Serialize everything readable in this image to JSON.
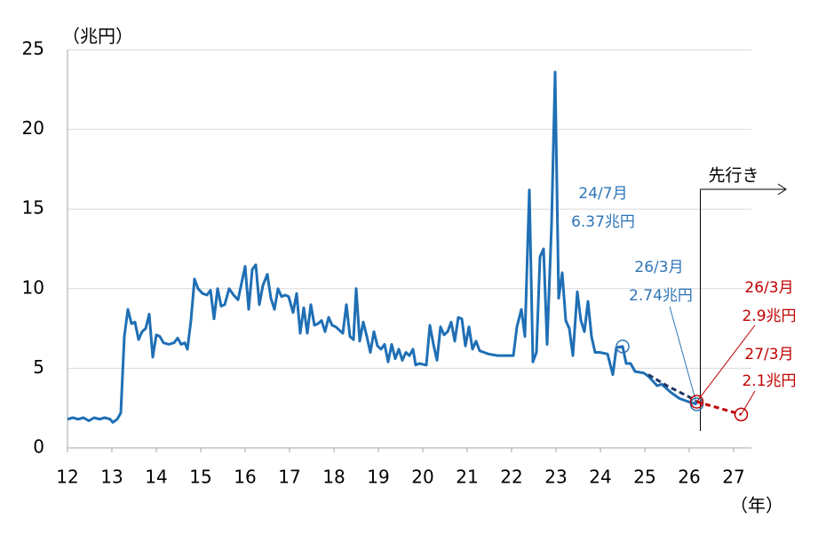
{
  "chart_data": {
    "type": "line",
    "x_label": "（年）",
    "y_label": "（兆円）",
    "xlim": [
      12,
      27.4
    ],
    "ylim": [
      0,
      25
    ],
    "xticks": [
      12,
      13,
      14,
      15,
      16,
      17,
      18,
      19,
      20,
      21,
      22,
      23,
      24,
      25,
      26,
      27
    ],
    "yticks": [
      0,
      5,
      10,
      15,
      20,
      25
    ],
    "grid": true,
    "series": [
      {
        "color": "#1f6fb5",
        "style": "solid",
        "x": [
          12.0,
          12.12,
          12.24,
          12.36,
          12.48,
          12.6,
          12.72,
          12.84,
          12.96,
          13.02,
          13.12,
          13.2,
          13.28,
          13.36,
          13.44,
          13.52,
          13.6,
          13.68,
          13.76,
          13.84,
          13.92,
          14.0,
          14.08,
          14.16,
          14.28,
          14.4,
          14.48,
          14.56,
          14.64,
          14.7,
          14.78,
          14.86,
          14.94,
          15.04,
          15.14,
          15.22,
          15.3,
          15.38,
          15.46,
          15.54,
          15.64,
          15.74,
          15.84,
          16.0,
          16.08,
          16.16,
          16.24,
          16.32,
          16.4,
          16.5,
          16.58,
          16.66,
          16.74,
          16.82,
          16.9,
          16.98,
          17.08,
          17.16,
          17.24,
          17.32,
          17.4,
          17.48,
          17.56,
          17.64,
          17.72,
          17.8,
          17.88,
          17.96,
          18.04,
          18.2,
          18.28,
          18.36,
          18.44,
          18.5,
          18.58,
          18.66,
          18.74,
          18.82,
          18.9,
          18.98,
          19.06,
          19.14,
          19.22,
          19.3,
          19.38,
          19.46,
          19.54,
          19.62,
          19.7,
          19.78,
          19.84,
          19.92,
          20.08,
          20.16,
          20.24,
          20.32,
          20.4,
          20.48,
          20.56,
          20.64,
          20.72,
          20.8,
          20.88,
          20.96,
          21.04,
          21.12,
          21.2,
          21.28,
          21.38,
          21.48,
          21.68,
          21.88,
          22.04,
          22.12,
          22.22,
          22.3,
          22.4,
          22.48,
          22.56,
          22.64,
          22.72,
          22.8,
          22.9,
          22.98,
          23.06,
          23.14,
          23.22,
          23.3,
          23.38,
          23.48,
          23.56,
          23.64,
          23.72,
          23.8,
          23.88,
          23.98,
          24.16,
          24.28,
          24.36,
          24.5,
          24.58,
          24.68,
          24.78,
          24.98,
          25.08,
          25.28,
          25.38,
          25.58,
          25.78,
          25.98,
          26.17
        ],
        "values": [
          1.8,
          1.9,
          1.8,
          1.9,
          1.7,
          1.9,
          1.8,
          1.9,
          1.8,
          1.6,
          1.8,
          2.2,
          7.0,
          8.7,
          7.8,
          7.9,
          6.8,
          7.3,
          7.5,
          8.4,
          5.7,
          7.1,
          7.0,
          6.6,
          6.5,
          6.6,
          6.9,
          6.5,
          6.6,
          6.2,
          8.0,
          10.6,
          10.0,
          9.7,
          9.6,
          9.9,
          8.1,
          10.0,
          8.9,
          9.0,
          10.0,
          9.6,
          9.3,
          11.4,
          8.7,
          11.2,
          11.5,
          9.0,
          10.2,
          10.9,
          9.4,
          8.7,
          10.0,
          9.5,
          9.6,
          9.5,
          8.5,
          9.7,
          7.2,
          8.8,
          7.2,
          9.0,
          7.7,
          7.8,
          8.0,
          7.3,
          8.2,
          7.7,
          7.6,
          7.2,
          9.0,
          7.0,
          6.8,
          10.0,
          6.7,
          7.9,
          7.0,
          6.0,
          7.3,
          6.4,
          6.2,
          6.5,
          5.4,
          6.5,
          5.6,
          6.2,
          5.5,
          6.0,
          5.8,
          6.2,
          5.2,
          5.3,
          5.2,
          7.7,
          6.5,
          5.5,
          7.6,
          7.1,
          7.3,
          7.9,
          6.7,
          8.2,
          8.1,
          6.4,
          7.6,
          6.2,
          6.7,
          6.1,
          6.0,
          5.9,
          5.8,
          5.8,
          5.8,
          7.6,
          8.7,
          7.0,
          16.2,
          5.4,
          6.0,
          12.0,
          12.5,
          6.5,
          14.0,
          23.6,
          9.4,
          11.0,
          8.0,
          7.5,
          5.8,
          9.8,
          8.0,
          7.3,
          9.2,
          7.0,
          6.0,
          6.0,
          5.9,
          4.6,
          6.3,
          6.37,
          5.3,
          5.3,
          4.8,
          4.7,
          4.5,
          3.9,
          4.0,
          3.5,
          3.1,
          2.9,
          2.74
        ]
      },
      {
        "color": "#1f3864",
        "style": "dashed",
        "x": [
          25.08,
          25.5,
          26.0,
          26.17
        ],
        "values": [
          4.6,
          3.9,
          3.2,
          2.9
        ]
      },
      {
        "color": "#c00000",
        "style": "dashed",
        "x": [
          26.17,
          27.17
        ],
        "values": [
          2.9,
          2.1
        ]
      }
    ],
    "annotations": [
      {
        "date": "24/7月",
        "label": "6.37兆円",
        "x": 24.5,
        "value": 6.37,
        "color": "#2e75b6"
      },
      {
        "date": "26/3月",
        "label": "2.74兆円",
        "x": 26.17,
        "value": 2.74,
        "color": "#2e75b6"
      },
      {
        "date": "26/3月",
        "label": "2.9兆円",
        "x": 26.17,
        "value": 2.9,
        "color": "#c00000"
      },
      {
        "date": "27/3月",
        "label": "2.1兆円",
        "x": 27.17,
        "value": 2.1,
        "color": "#c00000"
      }
    ],
    "divider": {
      "x": 26.25,
      "label": "先行き"
    }
  }
}
